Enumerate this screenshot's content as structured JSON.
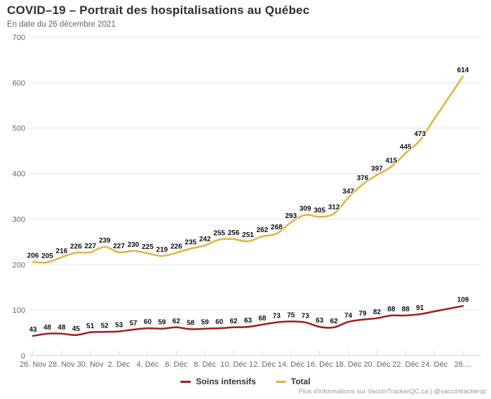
{
  "header": {
    "title": "COVID–19 – Portrait des hospitalisations au Québec",
    "subtitle": "En date du 26 décembre 2021"
  },
  "footer": {
    "credit": "Plus d'informations sur VaccinTrackerQC.ca | @vaccintrackerqc"
  },
  "chart_data": {
    "type": "line",
    "title": "COVID–19 – Portrait des hospitalisations au Québec",
    "subtitle": "En date du 26 décembre 2021",
    "n_points": 31,
    "x_tick_labels": [
      "26. Nov",
      "28. Nov",
      "30. Nov",
      "2. Déc",
      "4. Déc",
      "6. Déc",
      "8. Déc",
      "10. Déc",
      "12. Déc",
      "14. Déc",
      "16. Déc",
      "18. Déc",
      "20. Déc",
      "22. Déc",
      "24. Déc",
      "26...."
    ],
    "x_tick_every": 2,
    "ylim": [
      0,
      700
    ],
    "y_ticks": [
      0,
      100,
      200,
      300,
      400,
      500,
      600,
      700
    ],
    "grid": true,
    "legend_position": "bottom",
    "colors": {
      "grid": "#e6e6e6",
      "axis": "#cccccc",
      "tick": "#d8d8d8",
      "axis_text": "#666666",
      "data_label_text": "#101010"
    },
    "series": [
      {
        "name": "Soins intensifs",
        "color": "#a21c20",
        "values": [
          43,
          48,
          48,
          45,
          51,
          52,
          53,
          57,
          60,
          59,
          62,
          58,
          59,
          60,
          62,
          63,
          68,
          73,
          75,
          73,
          63,
          62,
          74,
          79,
          82,
          88,
          88,
          91,
          97,
          103,
          109
        ],
        "unlabeled_indices": [
          28,
          29
        ]
      },
      {
        "name": "Total",
        "color": "#e5b13f",
        "values": [
          206,
          205,
          216,
          226,
          227,
          239,
          227,
          230,
          225,
          219,
          226,
          235,
          242,
          255,
          256,
          251,
          262,
          268,
          293,
          309,
          305,
          312,
          347,
          376,
          397,
          415,
          445,
          473,
          520,
          567,
          614
        ],
        "unlabeled_indices": [
          28,
          29
        ]
      }
    ]
  }
}
